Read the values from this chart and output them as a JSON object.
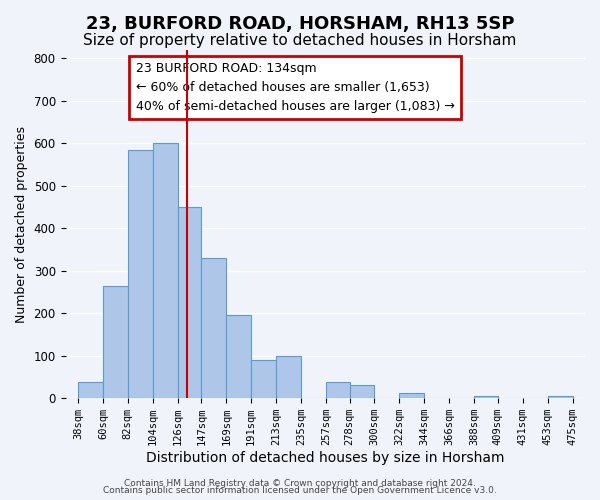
{
  "title": "23, BURFORD ROAD, HORSHAM, RH13 5SP",
  "subtitle": "Size of property relative to detached houses in Horsham",
  "xlabel": "Distribution of detached houses by size in Horsham",
  "ylabel": "Number of detached properties",
  "bar_left_edges": [
    38,
    60,
    82,
    104,
    126,
    147,
    169,
    191,
    213,
    235,
    257,
    278,
    300,
    322,
    344,
    366,
    388,
    409,
    431,
    453
  ],
  "bar_heights": [
    38,
    265,
    585,
    600,
    450,
    330,
    195,
    90,
    100,
    0,
    38,
    32,
    0,
    12,
    0,
    0,
    5,
    0,
    0,
    5
  ],
  "bar_widths": [
    22,
    22,
    22,
    22,
    21,
    22,
    22,
    22,
    22,
    22,
    21,
    22,
    22,
    22,
    22,
    22,
    21,
    22,
    22,
    22
  ],
  "bar_color": "#aec6e8",
  "bar_edge_color": "#5b9bd5",
  "property_line_x": 134,
  "annotation_box_text": "23 BURFORD ROAD: 134sqm\n← 60% of detached houses are smaller (1,653)\n40% of semi-detached houses are larger (1,083) →",
  "ylim": [
    0,
    820
  ],
  "xlim": [
    27,
    486
  ],
  "xtick_labels": [
    "38sqm",
    "60sqm",
    "82sqm",
    "104sqm",
    "126sqm",
    "147sqm",
    "169sqm",
    "191sqm",
    "213sqm",
    "235sqm",
    "257sqm",
    "278sqm",
    "300sqm",
    "322sqm",
    "344sqm",
    "366sqm",
    "388sqm",
    "409sqm",
    "431sqm",
    "453sqm",
    "475sqm"
  ],
  "xtick_positions": [
    38,
    60,
    82,
    104,
    126,
    147,
    169,
    191,
    213,
    235,
    257,
    278,
    300,
    322,
    344,
    366,
    388,
    409,
    431,
    453,
    475
  ],
  "ytick_positions": [
    0,
    100,
    200,
    300,
    400,
    500,
    600,
    700,
    800
  ],
  "footer_line1": "Contains HM Land Registry data © Crown copyright and database right 2024.",
  "footer_line2": "Contains public sector information licensed under the Open Government Licence v3.0.",
  "background_color": "#f0f4fa",
  "plot_bg_color": "#f0f4fa",
  "grid_color": "#ffffff",
  "box_edge_color": "#cc0000",
  "line_color": "#cc0000",
  "title_fontsize": 13,
  "subtitle_fontsize": 11,
  "annotation_fontsize": 9,
  "tick_fontsize": 7.5,
  "ylabel_fontsize": 9,
  "xlabel_fontsize": 10
}
